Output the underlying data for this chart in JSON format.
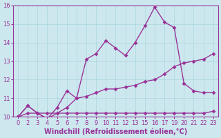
{
  "xlabel": "Windchill (Refroidissement éolien,°C)",
  "xlabels": [
    "0",
    "2",
    "3",
    "4",
    "5",
    "6",
    "7",
    "8",
    "9",
    "10",
    "11",
    "12",
    "13",
    "15",
    "16",
    "17",
    "19",
    "20",
    "21",
    "22",
    "23"
  ],
  "ylim": [
    10,
    16
  ],
  "yticks": [
    10,
    11,
    12,
    13,
    14,
    15,
    16
  ],
  "background_color": "#cce8ee",
  "grid_color": "#aad4dd",
  "line_color": "#993399",
  "line1_y": [
    10.0,
    10.6,
    10.2,
    9.9,
    10.2,
    10.5,
    11.0,
    11.1,
    11.3,
    11.5,
    11.5,
    11.6,
    11.7,
    11.9,
    12.0,
    12.3,
    12.7,
    12.9,
    13.0,
    13.1,
    13.4
  ],
  "line2_y": [
    10.0,
    10.2,
    10.2,
    10.2,
    10.2,
    10.2,
    10.2,
    10.2,
    10.2,
    10.2,
    10.2,
    10.2,
    10.2,
    10.2,
    10.2,
    10.2,
    10.2,
    10.2,
    10.2,
    10.2,
    10.3
  ],
  "line3_y": [
    10.0,
    10.6,
    10.2,
    9.9,
    10.5,
    11.4,
    11.0,
    13.1,
    13.4,
    14.1,
    13.7,
    13.3,
    14.0,
    14.9,
    15.9,
    15.1,
    14.8,
    11.8,
    11.4,
    11.3,
    11.3
  ],
  "markersize": 3,
  "linewidth": 1.0,
  "label_fontsize": 7,
  "tick_fontsize": 6
}
